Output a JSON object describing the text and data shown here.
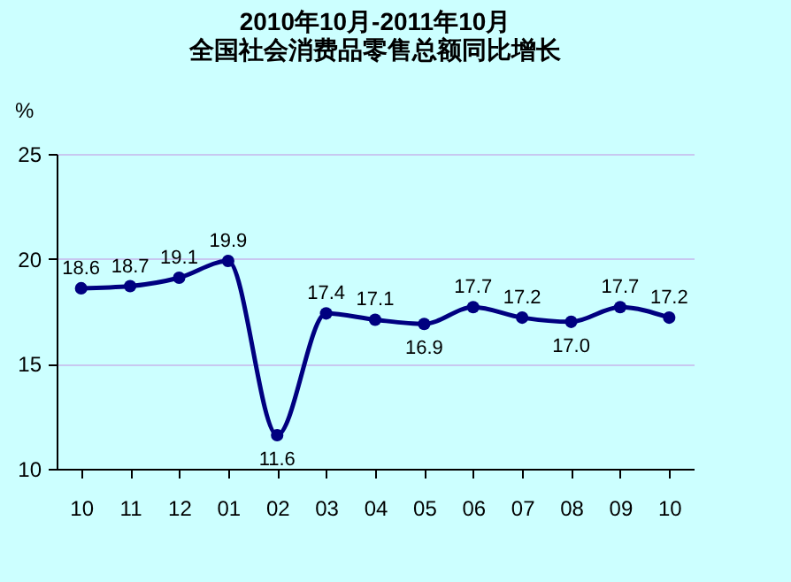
{
  "chart_data": {
    "type": "line",
    "title": [
      "2010年10月-2011年10月",
      "全国社会消费品零售总额同比增长"
    ],
    "ylabel": "%",
    "categories": [
      "10",
      "11",
      "12",
      "01",
      "02",
      "03",
      "04",
      "05",
      "06",
      "07",
      "08",
      "09",
      "10"
    ],
    "series": [
      {
        "color": "#000080",
        "values": [
          18.6,
          18.7,
          19.1,
          19.9,
          11.6,
          17.4,
          17.1,
          16.9,
          17.7,
          17.2,
          17.0,
          17.7,
          17.2
        ]
      }
    ],
    "value_labels": [
      "18.6",
      "18.7",
      "19.1",
      "19.9",
      "11.6",
      "17.4",
      "17.1",
      "16.9",
      "17.7",
      "17.2",
      "17.0",
      "17.7",
      "17.2"
    ],
    "ylim": [
      10,
      25
    ],
    "yticks": [
      10,
      15,
      20,
      25
    ],
    "grid": "y",
    "marker": "circle",
    "line_style": "solid",
    "legend": false
  }
}
